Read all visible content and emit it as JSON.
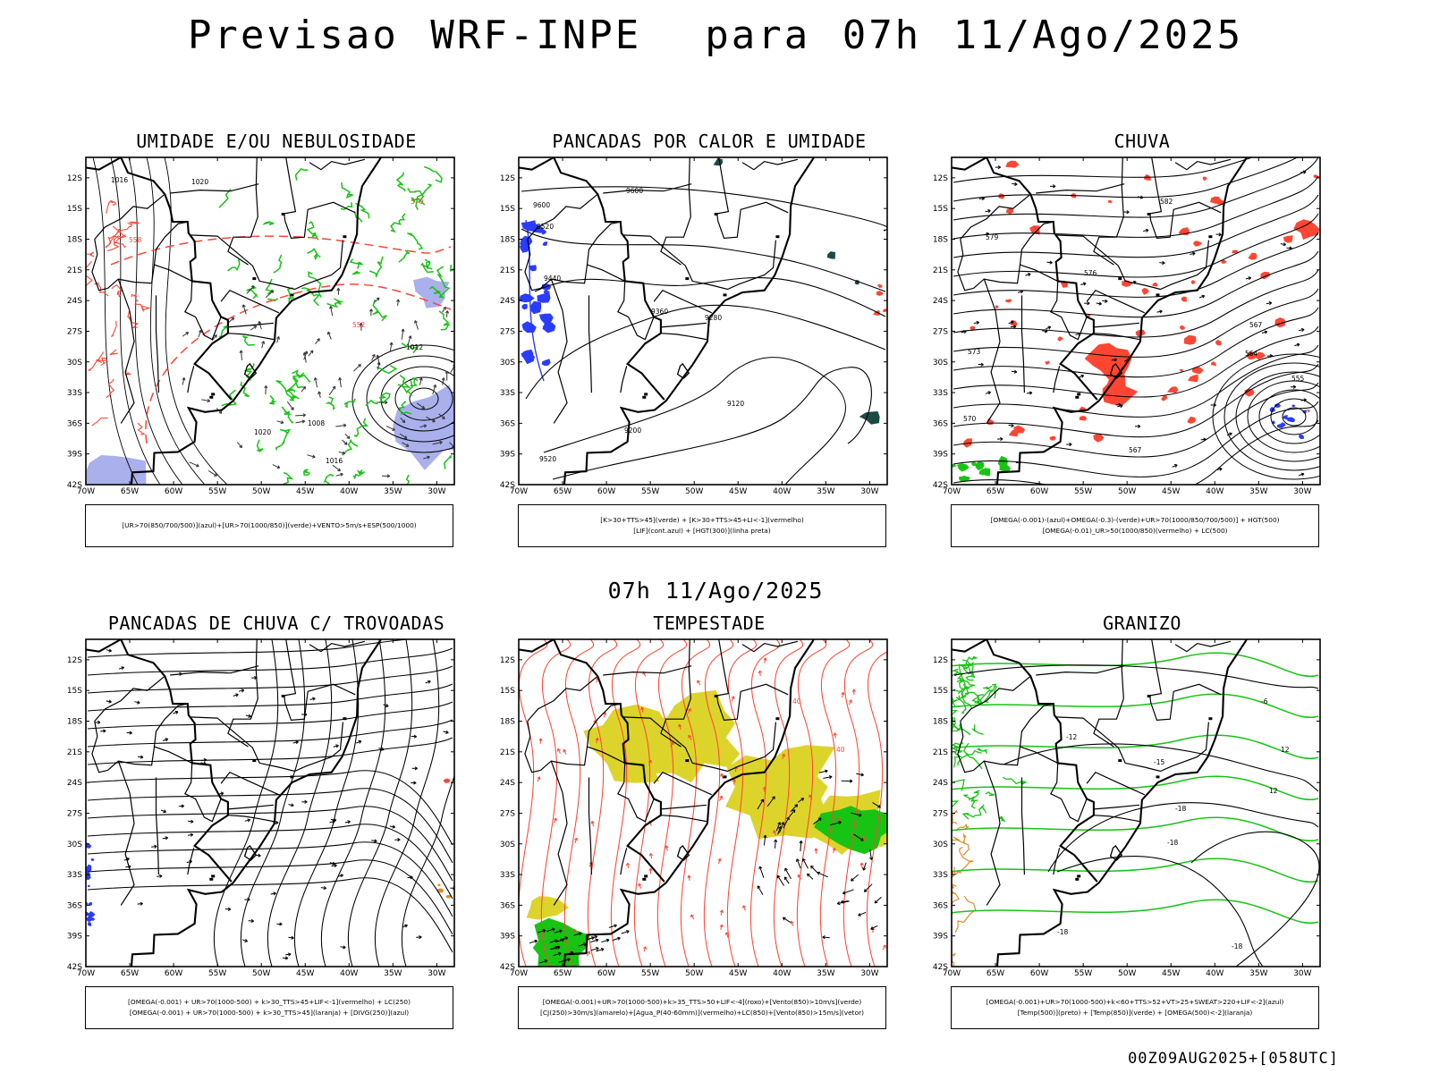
{
  "title": "Previsao WRF-INPE  para 07h 11/Ago/2025",
  "mid_title": "07h 11/Ago/2025",
  "footer": "00Z09AUG2025+[058UTC]",
  "axes": {
    "lat_labels": [
      "12S",
      "15S",
      "18S",
      "21S",
      "24S",
      "27S",
      "30S",
      "33S",
      "36S",
      "39S",
      "42S"
    ],
    "lon_labels": [
      "70W",
      "65W",
      "60W",
      "55W",
      "50W",
      "45W",
      "40W",
      "35W",
      "30W"
    ]
  },
  "colors": {
    "blue": "#2a3cff",
    "green": "#17c414",
    "red": "#ff4633",
    "yellow": "#dcd42a",
    "lavender": "#aab0ec",
    "orange": "#e38a2a",
    "darkteal": "#1e4a46"
  },
  "panels": [
    {
      "title": "UMIDADE E/OU NEBULOSIDADE",
      "legend": [
        "[UR>70(850/700/500)](azul)+[UR>70(1000/850)](verde)+VENTO>5m/s+ESP(500/1000)"
      ],
      "labels": [
        "1016",
        "1020",
        "570",
        "558",
        "552",
        "1008",
        "1012",
        "1016",
        "1020"
      ]
    },
    {
      "title": "PANCADAS POR CALOR E UMIDADE",
      "legend": [
        "[K>30+TTS>45](verde) + [K>30+TTS>45+LI<-1](vermelho)",
        "[LIF](cont.azul) + [HGT(300)](linha preta)"
      ],
      "labels": [
        "9600",
        "9520",
        "9440",
        "9360",
        "9280",
        "9200",
        "9120",
        "9520",
        "9600"
      ]
    },
    {
      "title": "CHUVA",
      "legend": [
        "[OMEGA(-0.001)-(azul)+OMEGA(-0.3)-(verde)+UR>70(1000/850/700/500)] + HGT(500)",
        "[OMEGA(-0.01)_UR>50(1000/850)(vermelho) + LC(500)"
      ],
      "labels": [
        "582",
        "579",
        "576",
        "573",
        "570",
        "567",
        "564",
        "555",
        "567"
      ]
    },
    {
      "title": "PANCADAS DE CHUVA C/ TROVOADAS",
      "legend": [
        "[OMEGA(-0.001) + UR>70(1000-500) + k>30_TTS>45+LIF<-1](vermelho) + LC(250)",
        "[OMEGA(-0.001) + UR>70(1000-500) + k>30_TTS>45](laranja) + [DIVG(250)](azul)"
      ],
      "labels": []
    },
    {
      "title": "TEMPESTADE",
      "legend": [
        "[OMEGA(-0.001)+UR>70(1000-500)+k>35_TTS>50+LIF<-4](roxo)+[Vento(850)>10m/s](verde)",
        "[CJ(250)>30m/s](amarelo)+[Agua_P(40-60mm)](vermelho)+LC(850)+[Vento(850)>15m/s](vetor)"
      ],
      "labels": [
        "40",
        "40"
      ]
    },
    {
      "title": "GRANIZO",
      "legend": [
        "[OMEGA(-0.001)+UR>70(1000-500)+k<60+TTS>52+VT>25+SWEAT>220+LIF<-2](azul)",
        "[Temp(500)](preto) + [Temp(850)](verde) + [OMEGA(500)<-2](laranja)"
      ],
      "labels": [
        "-6",
        "-12",
        "-15",
        "-18",
        "-18",
        "12",
        "-18",
        "12",
        "-18"
      ]
    }
  ]
}
